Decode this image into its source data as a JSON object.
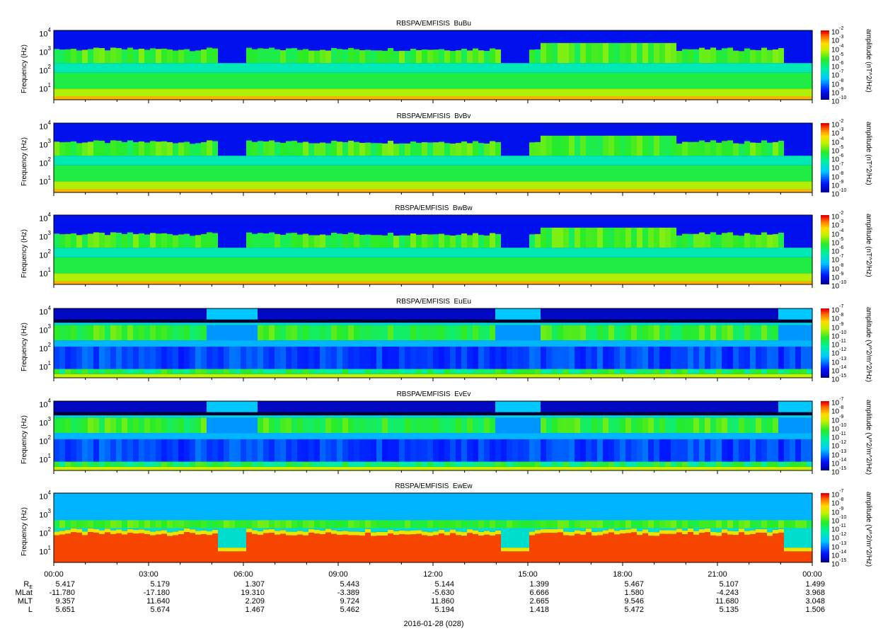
{
  "chart_data": [
    {
      "type": "heatmap",
      "title": "RBSPA/EMFISIS  BuBu",
      "ylabel": "Frequency (Hz)",
      "colorbar_label": "amplitude (nT^2/Hz)",
      "y_scale": "log",
      "y_ticks": [
        "10^1",
        "10^2",
        "10^3",
        "10^4"
      ],
      "ylim": [
        2,
        12000
      ],
      "colorbar_ticks": [
        "10^-2",
        "10^-3",
        "10^-4",
        "10^-5",
        "10^-6",
        "10^-7",
        "10^-8",
        "10^-9",
        "10^-10"
      ],
      "clim_exponent": [
        -10,
        -2
      ]
    },
    {
      "type": "heatmap",
      "title": "RBSPA/EMFISIS  BvBv",
      "ylabel": "Frequency (Hz)",
      "colorbar_label": "amplitude (nT^2/Hz)",
      "y_scale": "log",
      "y_ticks": [
        "10^1",
        "10^2",
        "10^3",
        "10^4"
      ],
      "ylim": [
        2,
        12000
      ],
      "colorbar_ticks": [
        "10^-2",
        "10^-3",
        "10^-4",
        "10^-5",
        "10^-6",
        "10^-7",
        "10^-8",
        "10^-9",
        "10^-10"
      ],
      "clim_exponent": [
        -10,
        -2
      ]
    },
    {
      "type": "heatmap",
      "title": "RBSPA/EMFISIS  BwBw",
      "ylabel": "Frequency (Hz)",
      "colorbar_label": "amplitude (nT^2/Hz)",
      "y_scale": "log",
      "y_ticks": [
        "10^1",
        "10^2",
        "10^3",
        "10^4"
      ],
      "ylim": [
        2,
        12000
      ],
      "colorbar_ticks": [
        "10^-2",
        "10^-3",
        "10^-4",
        "10^-5",
        "10^-6",
        "10^-7",
        "10^-8",
        "10^-9",
        "10^-10"
      ],
      "clim_exponent": [
        -10,
        -2
      ]
    },
    {
      "type": "heatmap",
      "title": "RBSPA/EMFISIS  EuEu",
      "ylabel": "Frequency (Hz)",
      "colorbar_label": "amplitude (V^2/m^2/Hz)",
      "y_scale": "log",
      "y_ticks": [
        "10^1",
        "10^2",
        "10^3",
        "10^4"
      ],
      "ylim": [
        2,
        12000
      ],
      "colorbar_ticks": [
        "10^-7",
        "10^-8",
        "10^-9",
        "10^-10",
        "10^-11",
        "10^-12",
        "10^-13",
        "10^-14",
        "10^-15"
      ],
      "clim_exponent": [
        -15,
        -7
      ]
    },
    {
      "type": "heatmap",
      "title": "RBSPA/EMFISIS  EvEv",
      "ylabel": "Frequency (Hz)",
      "colorbar_label": "amplitude (V^2/m^2/Hz)",
      "y_scale": "log",
      "y_ticks": [
        "10^1",
        "10^2",
        "10^3",
        "10^4"
      ],
      "ylim": [
        2,
        12000
      ],
      "colorbar_ticks": [
        "10^-7",
        "10^-8",
        "10^-9",
        "10^-10",
        "10^-11",
        "10^-12",
        "10^-13",
        "10^-14",
        "10^-15"
      ],
      "clim_exponent": [
        -15,
        -7
      ]
    },
    {
      "type": "heatmap",
      "title": "RBSPA/EMFISIS  EwEw",
      "ylabel": "Frequency (Hz)",
      "colorbar_label": "amplitude (V^2/m^2/Hz)",
      "y_scale": "log",
      "y_ticks": [
        "10^1",
        "10^2",
        "10^3",
        "10^4"
      ],
      "ylim": [
        2,
        12000
      ],
      "colorbar_ticks": [
        "10^-7",
        "10^-8",
        "10^-9",
        "10^-10",
        "10^-11",
        "10^-12",
        "10^-13",
        "10^-14",
        "10^-15"
      ],
      "clim_exponent": [
        -15,
        -7
      ]
    }
  ],
  "x_axis": {
    "ticks": [
      "00:00",
      "03:00",
      "06:00",
      "09:00",
      "12:00",
      "15:00",
      "18:00",
      "21:00",
      "00:00"
    ],
    "date_label": "2016-01-28 (028)"
  },
  "ephemeris": {
    "labels": [
      "RE",
      "MLat",
      "MLT",
      "L"
    ],
    "rows": [
      [
        "5.417",
        "5.179",
        "1.307",
        "5.443",
        "5.144",
        "1.399",
        "5.467",
        "5.107",
        "1.499"
      ],
      [
        "-11.780",
        "-17.180",
        "19.310",
        "-3.389",
        "-5.630",
        "6.666",
        "1.580",
        "-4.243",
        "3.968"
      ],
      [
        "9.357",
        "11.640",
        "2.209",
        "9.724",
        "11.860",
        "2.665",
        "9.546",
        "11.680",
        "3.048"
      ],
      [
        "5.651",
        "5.674",
        "1.467",
        "5.462",
        "5.194",
        "1.418",
        "5.472",
        "5.135",
        "1.506"
      ]
    ]
  }
}
